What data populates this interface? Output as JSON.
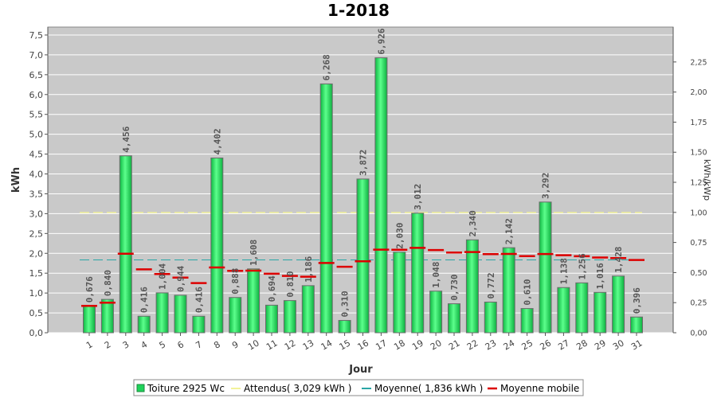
{
  "chart_data": {
    "type": "bar",
    "title": "1-2018",
    "xlabel": "Jour",
    "ylabel": "kWh",
    "ylabel_right": "kWh/kWp",
    "ylim": [
      0,
      7.7
    ],
    "ylim_right": [
      0,
      2.54
    ],
    "yticks": [
      "0,0",
      "0,5",
      "1,0",
      "1,5",
      "2,0",
      "2,5",
      "3,0",
      "3,5",
      "4,0",
      "4,5",
      "5,0",
      "5,5",
      "6,0",
      "6,5",
      "7,0",
      "7,5"
    ],
    "yticks_right": [
      "0,00",
      "0,25",
      "0,50",
      "0,75",
      "1,00",
      "1,25",
      "1,50",
      "1,75",
      "2,00",
      "2,25"
    ],
    "categories": [
      "1",
      "2",
      "3",
      "4",
      "5",
      "6",
      "7",
      "8",
      "9",
      "10",
      "11",
      "12",
      "13",
      "14",
      "15",
      "16",
      "17",
      "18",
      "19",
      "20",
      "21",
      "22",
      "23",
      "24",
      "25",
      "26",
      "27",
      "28",
      "29",
      "30",
      "31"
    ],
    "series": [
      {
        "name": "Toiture 2925 Wc",
        "values": [
          0.676,
          0.84,
          4.456,
          0.416,
          1.004,
          0.944,
          0.416,
          4.402,
          0.888,
          1.608,
          0.694,
          0.81,
          1.186,
          6.268,
          0.31,
          3.872,
          6.926,
          2.03,
          3.012,
          1.048,
          0.73,
          2.34,
          0.772,
          2.142,
          0.61,
          3.292,
          1.138,
          1.256,
          1.016,
          1.428,
          0.396
        ],
        "labels": [
          "0,676",
          "0,840",
          "4,456",
          "0,416",
          "1,004",
          "0,944",
          "0,416",
          "4,402",
          "0,888",
          "1,608",
          "0,694",
          "0,810",
          "1,186",
          "6,268",
          "0,310",
          "3,872",
          "6,926",
          "2,030",
          "3,012",
          "1,048",
          "0,730",
          "2,340",
          "0,772",
          "2,142",
          "0,610",
          "3,292",
          "1,138",
          "1,256",
          "1,016",
          "1,428",
          "0,396"
        ],
        "color": "#1fd35a"
      },
      {
        "name": "Attendus( 3,029 kWh )",
        "value": 3.029,
        "color": "#f2f29a"
      },
      {
        "name": "Moyenne( 1,836 kWh )",
        "value": 1.836,
        "color": "#2aa6a6"
      },
      {
        "name": "Moyenne mobile",
        "values": [
          0.676,
          0.758,
          1.991,
          1.597,
          1.478,
          1.389,
          1.25,
          1.644,
          1.56,
          1.565,
          1.486,
          1.43,
          1.411,
          1.758,
          1.661,
          1.799,
          2.094,
          2.09,
          2.139,
          2.084,
          2.019,
          2.034,
          1.979,
          1.986,
          1.931,
          1.983,
          1.952,
          1.927,
          1.896,
          1.88,
          1.832
        ],
        "color": "#dd0000"
      }
    ],
    "legend": "bottom",
    "grid": true
  }
}
